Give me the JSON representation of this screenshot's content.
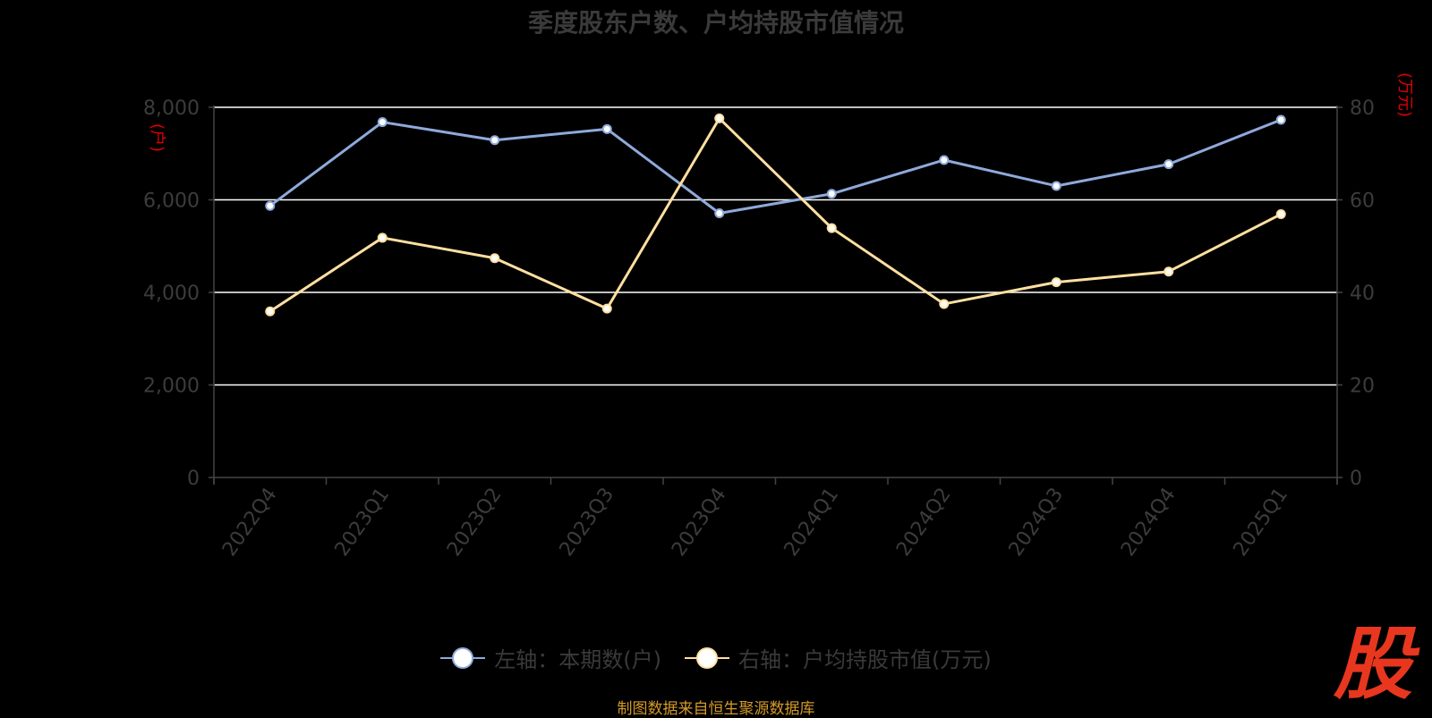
{
  "chart_data": {
    "type": "line",
    "title": "季度股东户数、户均持股市值情况",
    "categories": [
      "2022Q4",
      "2023Q1",
      "2023Q2",
      "2023Q3",
      "2023Q4",
      "2024Q1",
      "2024Q2",
      "2024Q3",
      "2024Q4",
      "2025Q1"
    ],
    "left_axis": {
      "unit": "(户)",
      "range": [
        0,
        8000
      ],
      "ticks": [
        0,
        2000,
        4000,
        6000,
        8000
      ],
      "tick_labels": [
        "0",
        "2,000",
        "4,000",
        "6,000",
        "8,000"
      ]
    },
    "right_axis": {
      "unit": "(万元)",
      "range": [
        0,
        80
      ],
      "ticks": [
        0,
        20,
        40,
        60,
        80
      ],
      "tick_labels": [
        "0",
        "20",
        "40",
        "60",
        "80"
      ]
    },
    "series": [
      {
        "name": "左轴：本期数(户)",
        "axis": "left",
        "color": "#8eaadb",
        "values": [
          5870,
          7680,
          7290,
          7530,
          5710,
          6130,
          6860,
          6300,
          6770,
          7730
        ]
      },
      {
        "name": "右轴：户均持股市值(万元)",
        "axis": "right",
        "color": "#ffe0a0",
        "values": [
          35.9,
          51.8,
          47.4,
          36.5,
          77.6,
          53.9,
          37.5,
          42.2,
          44.5,
          56.9
        ]
      }
    ],
    "grid": true,
    "legend_position": "bottom-center"
  },
  "source_note": "制图数据来自恒生聚源数据库",
  "logo_text": "股",
  "colors": {
    "background": "#000000",
    "gridline": "#ffffff",
    "unit_label": "#e10000",
    "source_note": "#d39a2a",
    "logo": "#e8371e"
  }
}
